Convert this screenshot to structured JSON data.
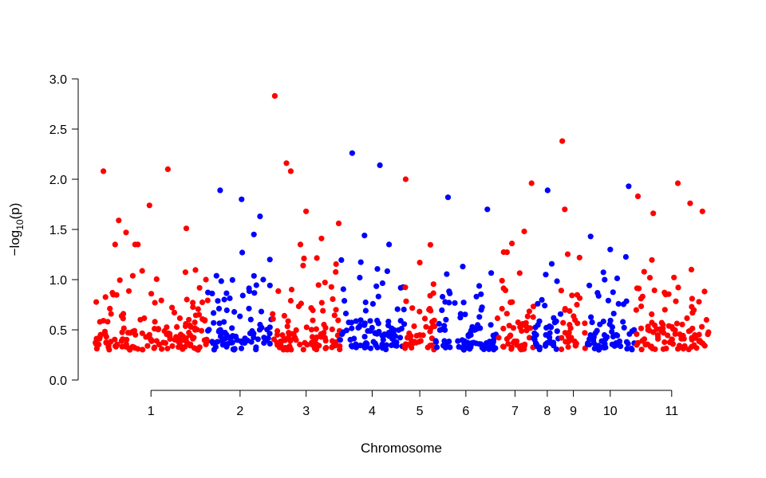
{
  "chart_data": {
    "type": "scatter",
    "title": "",
    "xlabel": "Chromosome",
    "ylabel": "−log10(p)",
    "ylabel_parts": {
      "prefix": "−log",
      "sub": "10",
      "suffix": "(p)"
    },
    "ylim": [
      0,
      3.0
    ],
    "yticks": [
      "0.0",
      "0.5",
      "1.0",
      "1.5",
      "2.0",
      "2.5",
      "3.0"
    ],
    "grid": false,
    "legend": "none",
    "colors": {
      "odd": "#ff0000",
      "even": "#0000ff"
    },
    "chromosomes": [
      {
        "label": "1",
        "start": 0.0,
        "end": 0.185,
        "color": "#ff0000",
        "peaks": [
          [
            0.015,
            2.08
          ],
          [
            0.04,
            1.59
          ],
          [
            0.052,
            1.47
          ],
          [
            0.09,
            1.74
          ],
          [
            0.12,
            2.1
          ],
          [
            0.15,
            1.51
          ],
          [
            0.182,
            1.0
          ]
        ]
      },
      {
        "label": "2",
        "start": 0.185,
        "end": 0.29,
        "color": "#0000ff",
        "peaks": [
          [
            0.205,
            1.89
          ],
          [
            0.24,
            1.8
          ],
          [
            0.26,
            1.45
          ],
          [
            0.27,
            1.63
          ],
          [
            0.286,
            1.2
          ]
        ]
      },
      {
        "label": "3",
        "start": 0.29,
        "end": 0.4,
        "color": "#ff0000",
        "peaks": [
          [
            0.294,
            2.83
          ],
          [
            0.313,
            2.16
          ],
          [
            0.32,
            2.08
          ],
          [
            0.345,
            1.68
          ],
          [
            0.37,
            1.41
          ],
          [
            0.398,
            1.56
          ]
        ]
      },
      {
        "label": "4",
        "start": 0.4,
        "end": 0.505,
        "color": "#0000ff",
        "peaks": [
          [
            0.42,
            2.26
          ],
          [
            0.465,
            2.14
          ],
          [
            0.48,
            1.35
          ],
          [
            0.44,
            1.44
          ]
        ]
      },
      {
        "label": "5",
        "start": 0.505,
        "end": 0.555,
        "color": "#ff0000",
        "peaks": [
          [
            0.507,
            2.0
          ],
          [
            0.53,
            1.17
          ],
          [
            0.545,
            0.7
          ]
        ]
      },
      {
        "label": "6",
        "start": 0.555,
        "end": 0.655,
        "color": "#0000ff",
        "peaks": [
          [
            0.576,
            1.82
          ],
          [
            0.64,
            1.7
          ],
          [
            0.6,
            1.13
          ]
        ]
      },
      {
        "label": "7",
        "start": 0.655,
        "end": 0.715,
        "color": "#ff0000",
        "peaks": [
          [
            0.68,
            1.36
          ],
          [
            0.7,
            1.48
          ],
          [
            0.712,
            1.96
          ]
        ]
      },
      {
        "label": "8",
        "start": 0.715,
        "end": 0.76,
        "color": "#0000ff",
        "peaks": [
          [
            0.738,
            1.89
          ],
          [
            0.735,
            1.05
          ]
        ]
      },
      {
        "label": "9",
        "start": 0.76,
        "end": 0.8,
        "color": "#ff0000",
        "peaks": [
          [
            0.762,
            2.38
          ],
          [
            0.766,
            1.7
          ],
          [
            0.79,
            1.22
          ]
        ]
      },
      {
        "label": "10",
        "start": 0.8,
        "end": 0.88,
        "color": "#0000ff",
        "peaks": [
          [
            0.808,
            1.43
          ],
          [
            0.84,
            1.3
          ],
          [
            0.87,
            1.93
          ]
        ]
      },
      {
        "label": "11",
        "start": 0.88,
        "end": 1.0,
        "color": "#ff0000",
        "peaks": [
          [
            0.885,
            1.83
          ],
          [
            0.91,
            1.66
          ],
          [
            0.95,
            1.96
          ],
          [
            0.97,
            1.76
          ],
          [
            0.99,
            1.68
          ]
        ]
      }
    ]
  }
}
